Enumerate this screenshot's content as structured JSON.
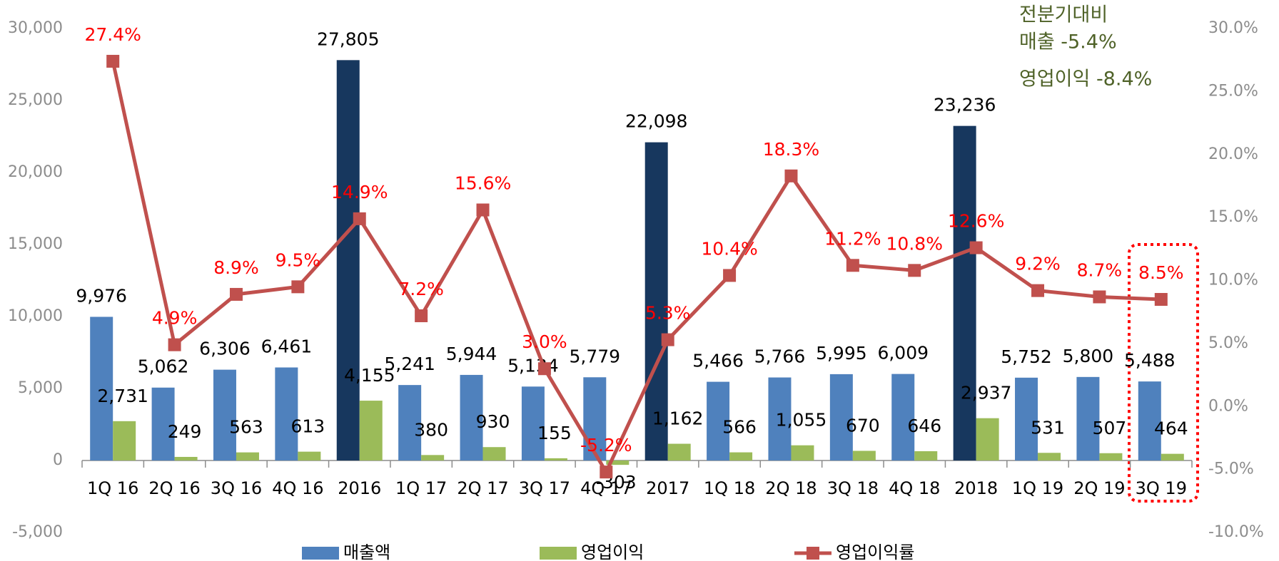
{
  "chart_data": {
    "type": "bar",
    "categories": [
      "1Q 16",
      "2Q 16",
      "3Q 16",
      "4Q 16",
      "2016",
      "1Q 17",
      "2Q 17",
      "3Q 17",
      "4Q 17",
      "2017",
      "1Q 18",
      "2Q 18",
      "3Q 18",
      "4Q 18",
      "2018",
      "1Q 19",
      "2Q 19",
      "3Q 19"
    ],
    "series": [
      {
        "name": "매출액",
        "color": "#4f81bd",
        "colors": [
          "#4f81bd",
          "#4f81bd",
          "#4f81bd",
          "#4f81bd",
          "#17375e",
          "#4f81bd",
          "#4f81bd",
          "#4f81bd",
          "#4f81bd",
          "#17375e",
          "#4f81bd",
          "#4f81bd",
          "#4f81bd",
          "#4f81bd",
          "#17375e",
          "#4f81bd",
          "#4f81bd",
          "#4f81bd"
        ],
        "values": [
          9976,
          5062,
          6306,
          6461,
          27805,
          5241,
          5944,
          5134,
          5779,
          22098,
          5466,
          5766,
          5995,
          6009,
          23236,
          5752,
          5800,
          5488
        ],
        "value_labels": [
          "9,976",
          "5,062",
          "6,306",
          "6,461",
          "27,805",
          "5,241",
          "5,944",
          "5,134",
          "5,779",
          "22,098",
          "5,466",
          "5,766",
          "5,995",
          "6,009",
          "23,236",
          "5,752",
          "5,800",
          "5,488"
        ]
      },
      {
        "name": "영업이익",
        "color": "#9bbb59",
        "values": [
          2731,
          249,
          563,
          613,
          4155,
          380,
          930,
          155,
          -303,
          1162,
          566,
          1055,
          670,
          646,
          2937,
          531,
          507,
          464
        ],
        "value_labels": [
          "2,731",
          "249",
          "563",
          "613",
          "4,155",
          "380",
          "930",
          "155",
          "-303",
          "1,162",
          "566",
          "1,055",
          "670",
          "646",
          "2,937",
          "531",
          "507",
          "464"
        ]
      },
      {
        "name": "영업이익률",
        "color": "#c0504d",
        "type": "line",
        "axis": "y2",
        "values": [
          27.4,
          4.9,
          8.9,
          9.5,
          14.9,
          7.2,
          15.6,
          3.0,
          -5.2,
          5.3,
          10.4,
          18.3,
          11.2,
          10.8,
          12.6,
          9.2,
          8.7,
          8.5
        ],
        "value_labels": [
          "27.4%",
          "4.9%",
          "8.9%",
          "9.5%",
          "14.9%",
          "7.2%",
          "15.6%",
          "3.0%",
          "-5.2%",
          "5.3%",
          "10.4%",
          "18.3%",
          "11.2%",
          "10.8%",
          "12.6%",
          "9.2%",
          "8.7%",
          "8.5%"
        ]
      }
    ],
    "ylim": [
      -5000,
      30000
    ],
    "yticks": [
      {
        "value": -5000,
        "label": "-5,000"
      },
      0,
      {
        "value": 5000,
        "label": "5,000"
      },
      {
        "value": 10000,
        "label": "10,000"
      },
      {
        "value": 15000,
        "label": "15,000"
      },
      {
        "value": 20000,
        "label": "20,000"
      },
      {
        "value": 25000,
        "label": "25,000"
      },
      {
        "value": 30000,
        "label": "30,000"
      }
    ],
    "y2lim": [
      -10,
      30
    ],
    "y2ticks": [
      {
        "value": -10,
        "label": "-10.0%"
      },
      {
        "value": -5,
        "label": "-5.0%"
      },
      {
        "value": 0,
        "label": "0.0%"
      },
      {
        "value": 5,
        "label": "5.0%"
      },
      {
        "value": 10,
        "label": "10.0%"
      },
      {
        "value": 15,
        "label": "15.0%"
      },
      {
        "value": 20,
        "label": "20.0%"
      },
      {
        "value": 25,
        "label": "25.0%"
      },
      {
        "value": 30,
        "label": "30.0%"
      }
    ],
    "annotations": [
      "전분기대비",
      "매출 -5.4%",
      "영업이익 -8.4%"
    ],
    "legend": "bottom"
  }
}
